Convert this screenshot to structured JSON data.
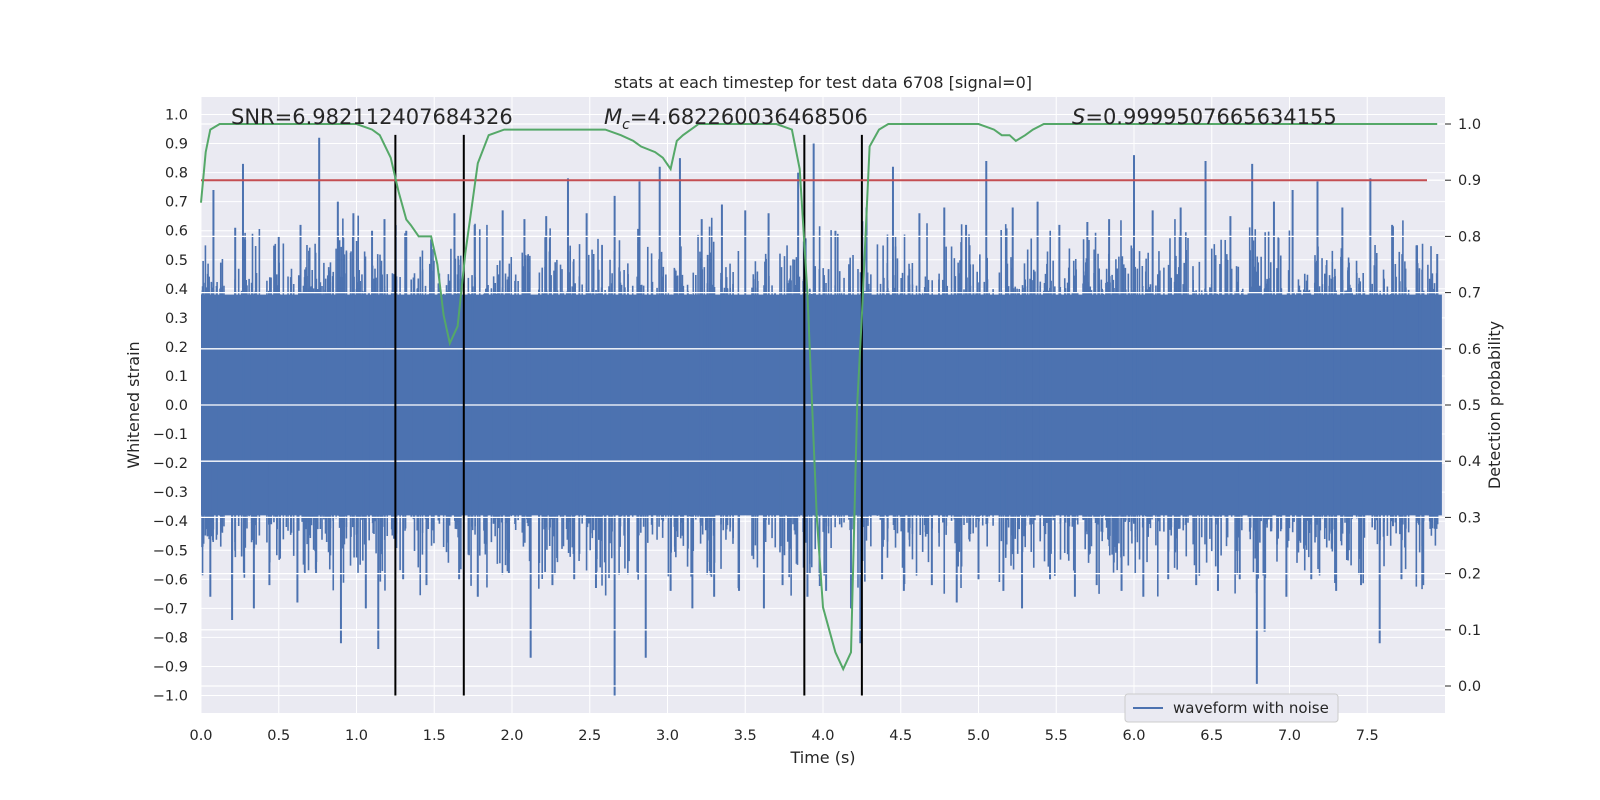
{
  "chart_data": {
    "type": "line",
    "title": "stats at each timestep for test data 6708 [signal=0]",
    "xlabel": "Time (s)",
    "ylabel": "Whitened strain",
    "ylabel_right": "Detection probability",
    "xlim": [
      0,
      8
    ],
    "ylim": [
      -1.1,
      1.05
    ],
    "ylim_right": [
      -0.05,
      1.04
    ],
    "x_ticks": [
      "0.0",
      "0.5",
      "1.0",
      "1.5",
      "2.0",
      "2.5",
      "3.0",
      "3.5",
      "4.0",
      "4.5",
      "5.0",
      "5.5",
      "6.0",
      "6.5",
      "7.0",
      "7.5"
    ],
    "y_ticks": [
      "−1.0",
      "−0.9",
      "−0.8",
      "−0.7",
      "−0.6",
      "−0.5",
      "−0.4",
      "−0.3",
      "−0.2",
      "−0.1",
      "0.0",
      "0.1",
      "0.2",
      "0.3",
      "0.4",
      "0.5",
      "0.6",
      "0.7",
      "0.8",
      "0.9",
      "1.0"
    ],
    "y_ticks_right": [
      "0.0",
      "0.1",
      "0.2",
      "0.3",
      "0.4",
      "0.5",
      "0.6",
      "0.7",
      "0.8",
      "0.9",
      "1.0"
    ],
    "grid": true,
    "legend": {
      "placement": "lower-right",
      "entries": [
        "waveform with noise"
      ]
    },
    "annotations": {
      "snr": "SNR=6.982112407684326",
      "mc_symbol": "M",
      "mc_sub": "c",
      "mc_value": "=4.682260036468506",
      "s_symbol": "S",
      "s_value": "=0.9999507665634155"
    },
    "series": [
      {
        "name": "waveform with noise",
        "axis": "left",
        "color": "#4c72b0",
        "peak_positive": [
          [
            0.08,
            0.74
          ],
          [
            0.22,
            0.61
          ],
          [
            0.27,
            0.83
          ],
          [
            0.5,
            0.58
          ],
          [
            0.64,
            0.62
          ],
          [
            0.76,
            0.92
          ],
          [
            0.88,
            0.7
          ],
          [
            0.98,
            0.66
          ],
          [
            1.1,
            0.6
          ],
          [
            1.18,
            0.64
          ],
          [
            1.32,
            0.6
          ],
          [
            1.48,
            0.57
          ],
          [
            1.63,
            0.66
          ],
          [
            1.76,
            0.62
          ],
          [
            1.94,
            0.67
          ],
          [
            2.08,
            0.64
          ],
          [
            2.22,
            0.65
          ],
          [
            2.36,
            0.78
          ],
          [
            2.48,
            0.66
          ],
          [
            2.66,
            0.72
          ],
          [
            2.82,
            0.77
          ],
          [
            2.95,
            0.82
          ],
          [
            3.08,
            0.85
          ],
          [
            3.22,
            0.64
          ],
          [
            3.35,
            0.69
          ],
          [
            3.5,
            0.67
          ],
          [
            3.65,
            0.66
          ],
          [
            3.84,
            0.8
          ],
          [
            3.94,
            0.9
          ],
          [
            4.08,
            0.6
          ],
          [
            4.28,
            0.68
          ],
          [
            4.45,
            0.82
          ],
          [
            4.62,
            0.66
          ],
          [
            4.78,
            0.68
          ],
          [
            4.92,
            0.62
          ],
          [
            5.05,
            0.84
          ],
          [
            5.22,
            0.68
          ],
          [
            5.38,
            0.7
          ],
          [
            5.52,
            0.62
          ],
          [
            5.7,
            0.63
          ],
          [
            5.84,
            0.64
          ],
          [
            6.0,
            0.86
          ],
          [
            6.12,
            0.67
          ],
          [
            6.3,
            0.68
          ],
          [
            6.46,
            0.84
          ],
          [
            6.62,
            0.65
          ],
          [
            6.76,
            0.83
          ],
          [
            6.9,
            0.7
          ],
          [
            7.02,
            0.74
          ],
          [
            7.18,
            0.77
          ],
          [
            7.34,
            0.68
          ],
          [
            7.52,
            0.78
          ],
          [
            7.66,
            0.62
          ],
          [
            7.82,
            0.55
          ],
          [
            7.95,
            0.52
          ]
        ],
        "peak_negative": [
          [
            0.06,
            -0.66
          ],
          [
            0.2,
            -0.6
          ],
          [
            0.2,
            -0.74
          ],
          [
            0.34,
            -0.7
          ],
          [
            0.44,
            -0.62
          ],
          [
            0.62,
            -0.68
          ],
          [
            0.74,
            -0.58
          ],
          [
            0.9,
            -0.82
          ],
          [
            1.06,
            -0.7
          ],
          [
            1.14,
            -0.84
          ],
          [
            1.3,
            -0.6
          ],
          [
            1.45,
            -0.62
          ],
          [
            1.66,
            -0.6
          ],
          [
            1.78,
            -0.66
          ],
          [
            1.98,
            -0.58
          ],
          [
            2.12,
            -0.87
          ],
          [
            2.26,
            -0.62
          ],
          [
            2.4,
            -0.6
          ],
          [
            2.54,
            -0.63
          ],
          [
            2.66,
            -1.0
          ],
          [
            2.86,
            -0.87
          ],
          [
            3.02,
            -0.64
          ],
          [
            3.16,
            -0.7
          ],
          [
            3.3,
            -0.66
          ],
          [
            3.46,
            -0.64
          ],
          [
            3.62,
            -0.7
          ],
          [
            3.74,
            -0.62
          ],
          [
            3.9,
            -0.66
          ],
          [
            4.02,
            -0.64
          ],
          [
            4.18,
            -0.7
          ],
          [
            4.24,
            -0.82
          ],
          [
            4.38,
            -0.6
          ],
          [
            4.52,
            -0.64
          ],
          [
            4.7,
            -0.62
          ],
          [
            4.86,
            -0.68
          ],
          [
            5.0,
            -0.6
          ],
          [
            5.16,
            -0.64
          ],
          [
            5.28,
            -0.7
          ],
          [
            5.46,
            -0.6
          ],
          [
            5.62,
            -0.66
          ],
          [
            5.76,
            -0.62
          ],
          [
            5.92,
            -0.64
          ],
          [
            6.06,
            -0.66
          ],
          [
            6.22,
            -0.6
          ],
          [
            6.4,
            -0.62
          ],
          [
            6.54,
            -0.64
          ],
          [
            6.68,
            -0.6
          ],
          [
            6.79,
            -0.96
          ],
          [
            6.84,
            -0.78
          ],
          [
            6.98,
            -0.66
          ],
          [
            7.14,
            -0.6
          ],
          [
            7.3,
            -0.64
          ],
          [
            7.46,
            -0.62
          ],
          [
            7.58,
            -0.82
          ],
          [
            7.72,
            -0.6
          ],
          [
            7.86,
            -0.62
          ]
        ]
      },
      {
        "name": "detection probability",
        "axis": "right",
        "color": "#55a868",
        "x": [
          0.0,
          0.03,
          0.06,
          0.12,
          0.25,
          0.5,
          0.8,
          1.0,
          1.1,
          1.15,
          1.22,
          1.27,
          1.32,
          1.35,
          1.4,
          1.48,
          1.52,
          1.56,
          1.6,
          1.65,
          1.7,
          1.73,
          1.78,
          1.85,
          1.95,
          2.05,
          2.15,
          2.3,
          2.5,
          2.6,
          2.7,
          2.78,
          2.83,
          2.92,
          2.97,
          3.02,
          3.06,
          3.1,
          3.2,
          3.3,
          3.5,
          3.7,
          3.8,
          3.85,
          3.9,
          3.93,
          3.96,
          4.0,
          4.04,
          4.08,
          4.13,
          4.18,
          4.22,
          4.25,
          4.3,
          4.36,
          4.42,
          4.5,
          4.7,
          5.0,
          5.1,
          5.15,
          5.2,
          5.24,
          5.3,
          5.35,
          5.42,
          5.5,
          5.7,
          6.0,
          6.5,
          7.0,
          7.5,
          7.95
        ],
        "y": [
          0.86,
          0.95,
          0.99,
          1.0,
          1.0,
          1.0,
          1.0,
          1.0,
          0.99,
          0.98,
          0.94,
          0.88,
          0.83,
          0.82,
          0.8,
          0.8,
          0.75,
          0.66,
          0.61,
          0.64,
          0.77,
          0.83,
          0.93,
          0.98,
          0.99,
          0.99,
          0.99,
          0.99,
          0.99,
          0.99,
          0.98,
          0.97,
          0.96,
          0.95,
          0.94,
          0.92,
          0.97,
          0.98,
          1.0,
          1.0,
          1.0,
          1.0,
          0.99,
          0.92,
          0.7,
          0.5,
          0.3,
          0.14,
          0.1,
          0.06,
          0.03,
          0.06,
          0.5,
          0.66,
          0.96,
          0.99,
          1.0,
          1.0,
          1.0,
          1.0,
          0.99,
          0.98,
          0.98,
          0.97,
          0.98,
          0.99,
          1.0,
          1.0,
          1.0,
          1.0,
          1.0,
          1.0,
          1.0,
          1.0
        ]
      }
    ],
    "threshold_line": {
      "axis": "right",
      "value": 0.9,
      "color": "#c44e52"
    },
    "event_lines": {
      "x": [
        1.25,
        1.69,
        3.88,
        4.25
      ],
      "ymin": -1.0,
      "ymax": 0.93,
      "color": "#000000"
    }
  }
}
